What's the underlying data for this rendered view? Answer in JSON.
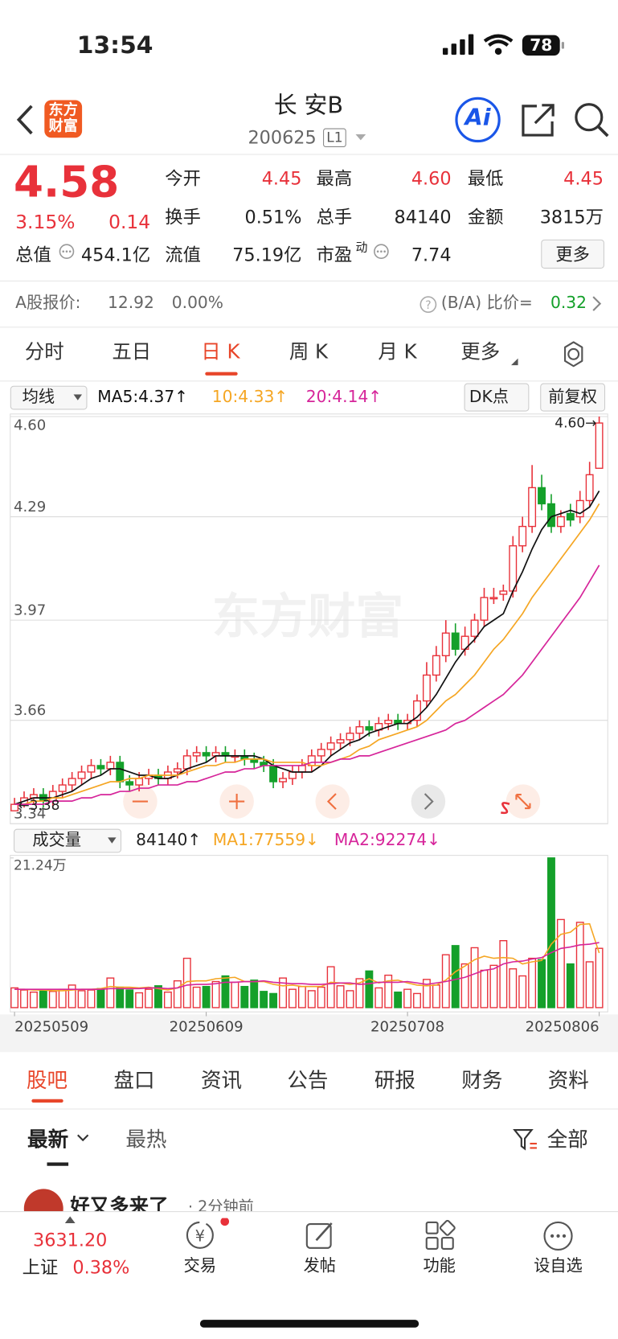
{
  "status": {
    "time": "13:54",
    "battery": "78"
  },
  "header": {
    "logo": [
      "东方",
      "财富"
    ],
    "title": "长 安B",
    "code": "200625",
    "level": "L1",
    "ai": "Ai"
  },
  "quote": {
    "price": "4.58",
    "change_pct": "3.15%",
    "change": "0.14",
    "fields": [
      {
        "label": "今开",
        "value": "4.45"
      },
      {
        "label": "最高",
        "value": "4.60"
      },
      {
        "label": "最低",
        "value": "4.45"
      },
      {
        "label": "换手",
        "value": "0.51%"
      },
      {
        "label": "总手",
        "value": "84140"
      },
      {
        "label": "金额",
        "value": "3815万"
      },
      {
        "label": "总值",
        "value": "454.1亿"
      },
      {
        "label": "流值",
        "value": "75.19亿"
      },
      {
        "label": "市盈",
        "sup": "动",
        "value": "7.74"
      }
    ],
    "more": "更多"
  },
  "compare": {
    "label": "A股报价:",
    "price": "12.92",
    "pct": "0.00%",
    "ratio_label": "(B/A) 比价=",
    "ratio": "0.32"
  },
  "period_tabs": {
    "items": [
      "分时",
      "五日",
      "日 K",
      "周 K",
      "月 K",
      "更多"
    ],
    "active": 2
  },
  "chart_data": [
    {
      "type": "candlestick",
      "indicator": "均线",
      "toolbar": [
        "DK点",
        "前复权"
      ],
      "ylim": [
        3.34,
        4.6
      ],
      "yticks": [
        {
          "value": 4.6,
          "label": "4.60"
        },
        4.29,
        3.97,
        3.66,
        3.34
      ],
      "categories": [
        "20250509",
        null,
        null,
        null,
        null,
        null,
        null,
        null,
        null,
        null,
        null,
        null,
        null,
        null,
        null,
        null,
        null,
        null,
        null,
        null,
        "20250609",
        null,
        null,
        null,
        null,
        null,
        null,
        null,
        null,
        null,
        null,
        null,
        null,
        null,
        null,
        null,
        null,
        null,
        null,
        null,
        null,
        "20250708",
        null,
        null,
        null,
        null,
        null,
        null,
        null,
        null,
        null,
        null,
        null,
        null,
        null,
        null,
        null,
        null,
        null,
        null,
        null,
        "20250806"
      ],
      "open": [
        3.38,
        3.4,
        3.42,
        3.43,
        3.41,
        3.44,
        3.46,
        3.48,
        3.5,
        3.52,
        3.51,
        3.53,
        3.47,
        3.46,
        3.48,
        3.49,
        3.48,
        3.5,
        3.51,
        3.55,
        3.56,
        3.55,
        3.56,
        3.55,
        3.55,
        3.54,
        3.53,
        3.52,
        3.47,
        3.48,
        3.5,
        3.52,
        3.55,
        3.57,
        3.59,
        3.6,
        3.62,
        3.64,
        3.63,
        3.65,
        3.66,
        3.65,
        3.66,
        3.72,
        3.8,
        3.86,
        3.93,
        3.88,
        3.92,
        3.97,
        4.04,
        4.05,
        4.06,
        4.2,
        4.26,
        4.38,
        4.33,
        4.26,
        4.3,
        4.29,
        4.34,
        4.44
      ],
      "high": [
        3.42,
        3.44,
        3.45,
        3.45,
        3.46,
        3.48,
        3.5,
        3.52,
        3.54,
        3.54,
        3.55,
        3.55,
        3.49,
        3.5,
        3.51,
        3.51,
        3.52,
        3.53,
        3.57,
        3.58,
        3.58,
        3.58,
        3.58,
        3.57,
        3.57,
        3.56,
        3.55,
        3.54,
        3.5,
        3.52,
        3.54,
        3.57,
        3.59,
        3.61,
        3.62,
        3.64,
        3.66,
        3.66,
        3.67,
        3.68,
        3.68,
        3.68,
        3.74,
        3.84,
        3.89,
        3.97,
        3.96,
        3.95,
        3.99,
        4.07,
        4.07,
        4.08,
        4.23,
        4.29,
        4.45,
        4.42,
        4.36,
        4.31,
        4.33,
        4.37,
        4.46,
        4.6
      ],
      "low": [
        3.38,
        3.39,
        3.4,
        3.39,
        3.39,
        3.42,
        3.44,
        3.46,
        3.48,
        3.49,
        3.49,
        3.45,
        3.44,
        3.44,
        3.46,
        3.46,
        3.46,
        3.48,
        3.49,
        3.53,
        3.53,
        3.53,
        3.53,
        3.53,
        3.52,
        3.51,
        3.5,
        3.45,
        3.45,
        3.46,
        3.48,
        3.5,
        3.53,
        3.55,
        3.57,
        3.58,
        3.6,
        3.61,
        3.61,
        3.63,
        3.63,
        3.63,
        3.64,
        3.7,
        3.78,
        3.84,
        3.86,
        3.86,
        3.9,
        3.95,
        4.02,
        4.03,
        4.04,
        4.18,
        4.24,
        4.31,
        4.24,
        4.24,
        4.26,
        4.27,
        4.32,
        4.44
      ],
      "close": [
        3.4,
        3.42,
        3.43,
        3.41,
        3.44,
        3.46,
        3.48,
        3.5,
        3.52,
        3.51,
        3.53,
        3.47,
        3.46,
        3.48,
        3.49,
        3.48,
        3.5,
        3.51,
        3.55,
        3.56,
        3.55,
        3.56,
        3.55,
        3.55,
        3.54,
        3.53,
        3.52,
        3.47,
        3.48,
        3.5,
        3.52,
        3.55,
        3.57,
        3.59,
        3.6,
        3.62,
        3.64,
        3.63,
        3.65,
        3.66,
        3.65,
        3.66,
        3.72,
        3.8,
        3.86,
        3.93,
        3.88,
        3.92,
        3.97,
        4.04,
        4.04,
        4.06,
        4.2,
        4.26,
        4.38,
        4.33,
        4.26,
        4.29,
        4.28,
        4.34,
        4.42,
        4.58
      ],
      "up_color": "#e8313a",
      "down_color": "#14a02a",
      "ma_series": [
        {
          "name": "MA5:4.37↑",
          "color": "#111111",
          "values": [
            3.4,
            3.41,
            3.42,
            3.42,
            3.42,
            3.43,
            3.44,
            3.46,
            3.48,
            3.49,
            3.51,
            3.51,
            3.5,
            3.49,
            3.49,
            3.48,
            3.48,
            3.49,
            3.51,
            3.52,
            3.53,
            3.55,
            3.55,
            3.55,
            3.55,
            3.55,
            3.54,
            3.52,
            3.51,
            3.5,
            3.5,
            3.5,
            3.52,
            3.55,
            3.57,
            3.59,
            3.6,
            3.62,
            3.63,
            3.64,
            3.65,
            3.65,
            3.67,
            3.7,
            3.74,
            3.79,
            3.84,
            3.88,
            3.91,
            3.95,
            3.97,
            3.99,
            4.06,
            4.12,
            4.19,
            4.25,
            4.29,
            4.3,
            4.31,
            4.3,
            4.32,
            4.37
          ]
        },
        {
          "name": "10:4.33↑",
          "color": "#f5a623",
          "values": [
            3.4,
            3.4,
            3.41,
            3.41,
            3.42,
            3.42,
            3.43,
            3.44,
            3.45,
            3.46,
            3.47,
            3.47,
            3.48,
            3.48,
            3.49,
            3.49,
            3.49,
            3.49,
            3.5,
            3.51,
            3.52,
            3.52,
            3.53,
            3.53,
            3.54,
            3.54,
            3.54,
            3.53,
            3.53,
            3.53,
            3.53,
            3.52,
            3.52,
            3.53,
            3.54,
            3.55,
            3.57,
            3.58,
            3.6,
            3.61,
            3.62,
            3.63,
            3.64,
            3.66,
            3.69,
            3.72,
            3.74,
            3.77,
            3.8,
            3.84,
            3.88,
            3.91,
            3.95,
            3.99,
            4.04,
            4.08,
            4.12,
            4.16,
            4.2,
            4.24,
            4.28,
            4.33
          ]
        },
        {
          "name": "20:4.14↑",
          "color": "#d6259a",
          "values": [
            3.4,
            3.4,
            3.4,
            3.4,
            3.41,
            3.41,
            3.41,
            3.42,
            3.42,
            3.43,
            3.43,
            3.44,
            3.44,
            3.45,
            3.45,
            3.46,
            3.46,
            3.46,
            3.47,
            3.47,
            3.48,
            3.49,
            3.5,
            3.5,
            3.51,
            3.51,
            3.52,
            3.52,
            3.52,
            3.52,
            3.52,
            3.53,
            3.53,
            3.53,
            3.54,
            3.54,
            3.55,
            3.55,
            3.56,
            3.57,
            3.58,
            3.59,
            3.6,
            3.61,
            3.62,
            3.63,
            3.65,
            3.66,
            3.68,
            3.7,
            3.72,
            3.74,
            3.77,
            3.8,
            3.84,
            3.88,
            3.92,
            3.96,
            4.0,
            4.04,
            4.09,
            4.14
          ]
        }
      ],
      "annotations": {
        "high": "4.60→",
        "low": "←3.38"
      }
    },
    {
      "type": "bar",
      "title": "成交量",
      "latest": "84140↑",
      "ylim": [
        0,
        21.24
      ],
      "yticks": [
        {
          "value": 21.24,
          "label": "21.24万"
        }
      ],
      "values": [
        2.8,
        2.5,
        2.2,
        2.4,
        2.3,
        2.6,
        3.2,
        2.4,
        2.5,
        2.7,
        4.2,
        2.9,
        2.5,
        2.1,
        2.6,
        3.1,
        2.2,
        3.8,
        7.0,
        2.9,
        3.0,
        3.7,
        4.5,
        3.6,
        3.0,
        3.9,
        2.3,
        2.0,
        4.2,
        2.6,
        3.0,
        2.4,
        2.9,
        5.8,
        3.1,
        2.4,
        4.1,
        5.2,
        2.8,
        4.6,
        2.2,
        2.6,
        2.0,
        4.0,
        3.2,
        7.5,
        8.8,
        6.2,
        8.5,
        5.3,
        6.0,
        9.5,
        5.5,
        4.5,
        7.0,
        6.8,
        21.24,
        12.5,
        6.2,
        12.1,
        6.5,
        8.414
      ],
      "series": [
        {
          "name": "MA1:77559↓",
          "color": "#f5a623",
          "values": [
            2.6,
            2.6,
            2.5,
            2.5,
            2.4,
            2.4,
            2.5,
            2.6,
            2.6,
            2.7,
            3.0,
            2.9,
            2.9,
            2.8,
            2.9,
            2.7,
            2.5,
            2.8,
            3.7,
            3.8,
            3.8,
            4.1,
            4.2,
            4.3,
            3.7,
            3.7,
            3.7,
            3.3,
            3.1,
            3.2,
            3.0,
            3.0,
            3.0,
            3.6,
            3.5,
            3.3,
            3.5,
            4.1,
            3.5,
            3.8,
            3.9,
            3.5,
            3.2,
            3.1,
            3.2,
            3.9,
            5.1,
            5.9,
            6.8,
            7.3,
            7.0,
            7.1,
            7.0,
            6.2,
            6.5,
            6.7,
            9.0,
            10.4,
            10.7,
            11.8,
            11.9,
            7.7559
          ]
        },
        {
          "name": "MA2:92274↓",
          "color": "#d6259a",
          "values": [
            2.6,
            2.6,
            2.6,
            2.6,
            2.6,
            2.6,
            2.6,
            2.6,
            2.6,
            2.6,
            2.7,
            2.7,
            2.7,
            2.7,
            2.8,
            2.8,
            2.7,
            2.8,
            3.2,
            3.3,
            3.3,
            3.4,
            3.6,
            3.6,
            3.7,
            3.7,
            3.8,
            3.6,
            3.5,
            3.4,
            3.4,
            3.3,
            3.3,
            3.4,
            3.5,
            3.5,
            3.3,
            3.4,
            3.6,
            3.6,
            3.6,
            3.7,
            3.5,
            3.3,
            3.5,
            3.7,
            4.0,
            4.3,
            4.8,
            5.3,
            5.5,
            6.2,
            6.5,
            6.6,
            6.9,
            7.1,
            7.8,
            8.4,
            8.6,
            8.9,
            9.0,
            9.2274
          ]
        }
      ]
    }
  ],
  "watermark": "东方财富",
  "section_tabs": {
    "items": [
      "股吧",
      "盘口",
      "资讯",
      "公告",
      "研报",
      "财务",
      "资料"
    ],
    "active": 0
  },
  "sort_tabs": {
    "items": [
      "最新",
      "最热"
    ],
    "filter": "全部"
  },
  "post": {
    "author": "好又多来了",
    "time": "· 2分钟前"
  },
  "bottom_nav": {
    "index_value": "3631.20",
    "index_name": "上证",
    "index_pct": "0.38%",
    "items": [
      "交易",
      "发帖",
      "功能",
      "设自选"
    ]
  }
}
